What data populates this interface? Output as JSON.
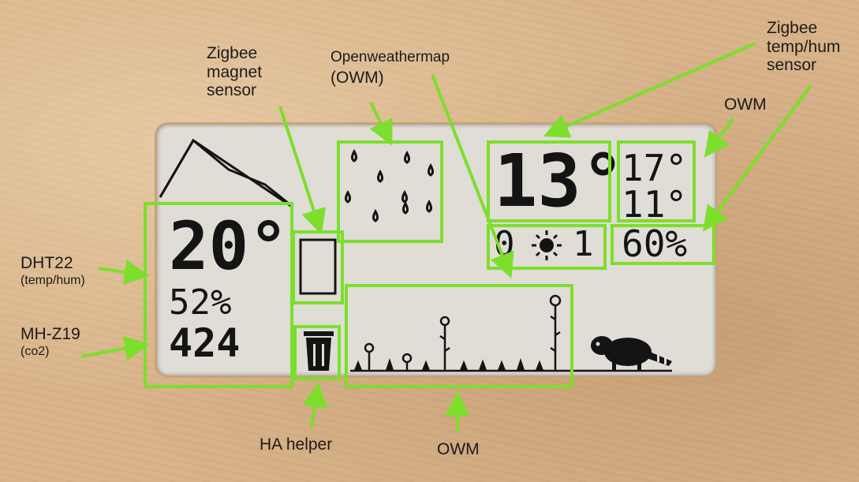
{
  "display": {
    "indoor_temp": "20°",
    "indoor_humidity": "52%",
    "co2": "424",
    "outdoor_temp": "13°",
    "forecast_high": "17°",
    "forecast_low": "11°",
    "outdoor_humidity": "60%",
    "weather_left": "0",
    "weather_right": "1",
    "icons": [
      "house-outline-icon",
      "rain-drops-icon",
      "door-icon",
      "trash-bin-icon",
      "sun-icon",
      "flowers-icon",
      "raccoon-icon"
    ]
  },
  "annotations": {
    "dht22": "DHT22",
    "dht22_sub": "(temp/hum)",
    "mhz19": "MH-Z19",
    "mhz19_sub": "(co2)",
    "zigbee_magnet_line1": "Zigbee",
    "zigbee_magnet_line2": "magnet",
    "zigbee_magnet_line3": "sensor",
    "owm_rain_line1": "Openweathermap",
    "owm_rain_line2": "(OWM)",
    "zigbee_temp_line1": "Zigbee",
    "zigbee_temp_line2": "temp/hum",
    "zigbee_temp_line3": "sensor",
    "owm_top": "OWM",
    "ha_helper": "HA helper",
    "owm_bottom": "OWM"
  },
  "colors": {
    "highlight": "#7dde2c",
    "eink_ink": "#141414",
    "eink_paper": "#dfddd6",
    "wood": "#d9b48a"
  }
}
